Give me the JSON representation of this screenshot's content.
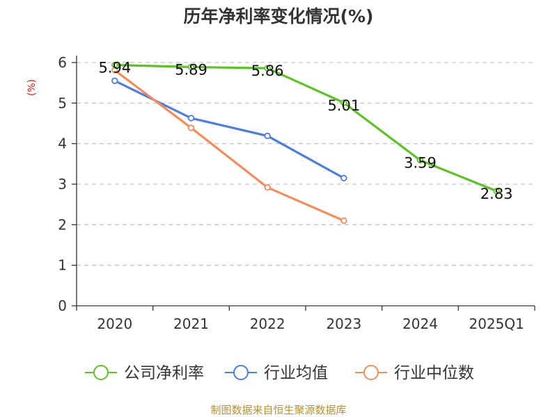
{
  "chart_data": {
    "type": "line",
    "title": "历年净利率变化情况(%)",
    "xlabel": "",
    "ylabel": "(%)",
    "categories": [
      "2020",
      "2021",
      "2022",
      "2023",
      "2024",
      "2025Q1"
    ],
    "ylim": [
      0,
      6
    ],
    "yticks": [
      "0",
      "1",
      "2",
      "3",
      "4",
      "5",
      "6"
    ],
    "grid": true,
    "legend_position": "bottom",
    "series": [
      {
        "name": "公司净利率",
        "color": "#5cc325",
        "values": [
          5.94,
          5.89,
          5.86,
          5.01,
          3.59,
          2.83
        ],
        "labels": [
          "5.94",
          "5.89",
          "5.86",
          "5.01",
          "3.59",
          "2.83"
        ]
      },
      {
        "name": "行业均值",
        "color": "#4a7ee0",
        "values": [
          5.55,
          4.63,
          4.19,
          3.15,
          null,
          null
        ]
      },
      {
        "name": "行业中位数",
        "color": "#f58c5a",
        "values": [
          5.81,
          4.39,
          2.92,
          2.1,
          null,
          null
        ]
      }
    ],
    "source": "制图数据来自恒生聚源数据库"
  }
}
